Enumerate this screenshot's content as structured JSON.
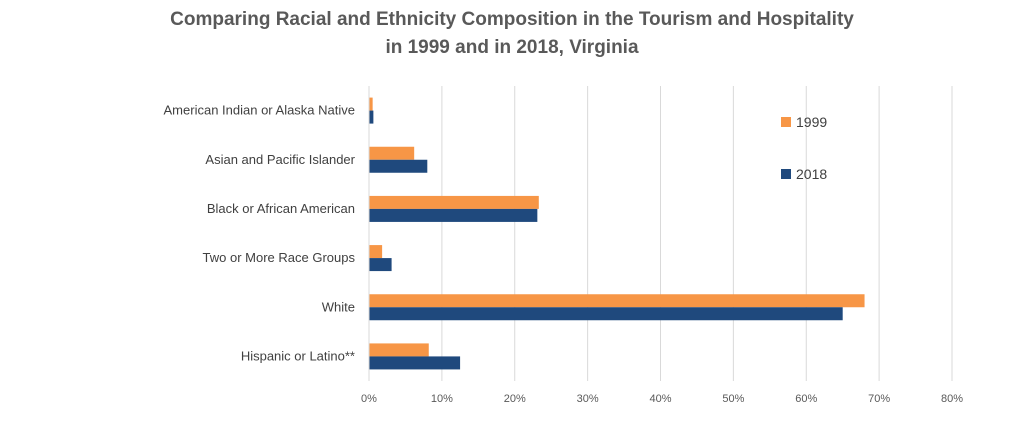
{
  "chart_data": {
    "type": "bar",
    "orientation": "horizontal",
    "title_line1": "Comparing Racial and Ethnicity Composition in the Tourism and Hospitality",
    "title_line2": "in 1999 and in 2018, Virginia",
    "categories": [
      "American Indian or Alaska Native",
      "Asian and Pacific Islander",
      "Black or African American",
      "Two or More Race Groups",
      "White",
      "Hispanic or Latino**"
    ],
    "series": [
      {
        "name": "1999",
        "color": "#F79646",
        "values": [
          0.5,
          6.2,
          23.3,
          1.8,
          68.0,
          8.2
        ]
      },
      {
        "name": "2018",
        "color": "#1F497D",
        "values": [
          0.6,
          8.0,
          23.1,
          3.1,
          65.0,
          12.5
        ]
      }
    ],
    "xlim": [
      0,
      80
    ],
    "xticks": [
      "0%",
      "10%",
      "20%",
      "30%",
      "40%",
      "50%",
      "60%",
      "70%",
      "80%"
    ],
    "grid": true,
    "legend_position": "right"
  }
}
